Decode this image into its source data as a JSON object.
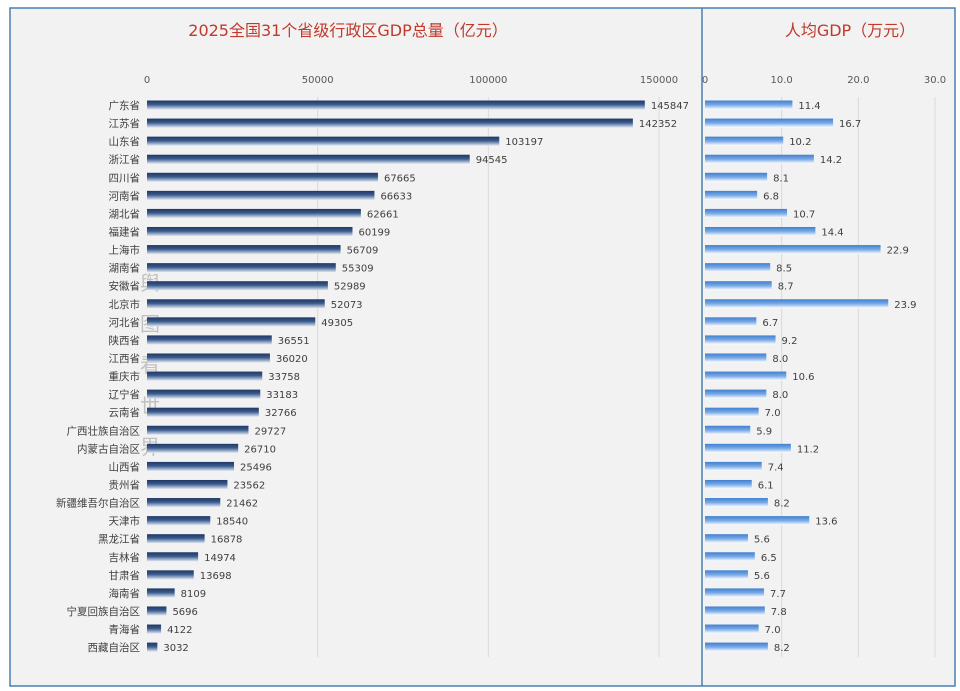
{
  "watermark": "舆图看世界",
  "colors": {
    "title": "#c0392b",
    "border": "#4a7eb0",
    "background": "#f2f2f2",
    "left_bar_dark": "#1f3864",
    "left_bar_light": "#dce6f2",
    "right_bar_dark": "#3f7fd0",
    "right_bar_light": "#ffffff"
  },
  "chart_data": [
    {
      "type": "bar",
      "orientation": "horizontal",
      "title": "2025全国31个省级行政区GDP总量（亿元）",
      "xlim": [
        0,
        150000
      ],
      "ticks": [
        "0",
        "50000",
        "100000",
        "150000"
      ],
      "grid": true,
      "categories": [
        "广东省",
        "江苏省",
        "山东省",
        "浙江省",
        "四川省",
        "河南省",
        "湖北省",
        "福建省",
        "上海市",
        "湖南省",
        "安徽省",
        "北京市",
        "河北省",
        "陕西省",
        "江西省",
        "重庆市",
        "辽宁省",
        "云南省",
        "广西壮族自治区",
        "内蒙古自治区",
        "山西省",
        "贵州省",
        "新疆维吾尔自治区",
        "天津市",
        "黑龙江省",
        "吉林省",
        "甘肃省",
        "海南省",
        "宁夏回族自治区",
        "青海省",
        "西藏自治区"
      ],
      "values": [
        145847,
        142352,
        103197,
        94545,
        67665,
        66633,
        62661,
        60199,
        56709,
        55309,
        52989,
        52073,
        49305,
        36551,
        36020,
        33758,
        33183,
        32766,
        29727,
        26710,
        25496,
        23562,
        21462,
        18540,
        16878,
        14974,
        13698,
        8109,
        5696,
        4122,
        3032
      ]
    },
    {
      "type": "bar",
      "orientation": "horizontal",
      "title": "人均GDP（万元）",
      "xlim": [
        0,
        30
      ],
      "ticks": [
        "0",
        "10.0",
        "20.0",
        "30.0"
      ],
      "grid": true,
      "values": [
        11.4,
        16.7,
        10.2,
        14.2,
        8.1,
        6.8,
        10.7,
        14.4,
        22.9,
        8.5,
        8.7,
        23.9,
        6.7,
        9.2,
        8.0,
        10.6,
        8.0,
        7.0,
        5.9,
        11.2,
        7.4,
        6.1,
        8.2,
        13.6,
        5.6,
        6.5,
        5.6,
        7.7,
        7.8,
        7.0,
        8.2
      ]
    }
  ]
}
